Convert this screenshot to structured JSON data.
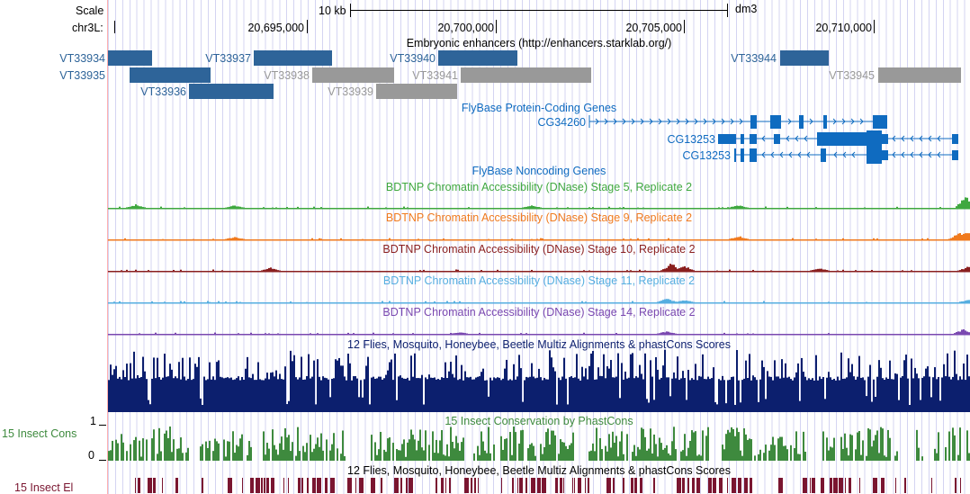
{
  "colors": {
    "enhancer": "#2e6499",
    "enhancer_alt": "#999999",
    "gene": "#0f6bc0",
    "stage5": "#3fa83f",
    "stage9": "#f07a1e",
    "stage10": "#8a1f1f",
    "stage11": "#55aee0",
    "stage14": "#7a48b0",
    "multiz": "#0c1f6e",
    "phastcons": "#3e8a3e",
    "elements": "#7a1530"
  },
  "ruler": {
    "scale_label": "Scale",
    "scale_bar_label": "10 kb",
    "assembly": "dm3",
    "chrom_label": "chr3L:",
    "positions": [
      "20,695,000",
      "20,700,000",
      "20,705,000",
      "20,710,000"
    ]
  },
  "tracks": {
    "enhancers": {
      "title": "Embryonic enhancers (http://enhancers.starklab.org/)",
      "features": [
        {
          "name": "VT33934",
          "shade": "enhancer"
        },
        {
          "name": "VT33935",
          "shade": "enhancer"
        },
        {
          "name": "VT33936",
          "shade": "enhancer"
        },
        {
          "name": "VT33937",
          "shade": "enhancer"
        },
        {
          "name": "VT33938",
          "shade": "enhancer_alt"
        },
        {
          "name": "VT33939",
          "shade": "enhancer_alt"
        },
        {
          "name": "VT33940",
          "shade": "enhancer"
        },
        {
          "name": "VT33941",
          "shade": "enhancer_alt"
        },
        {
          "name": "VT33944",
          "shade": "enhancer"
        },
        {
          "name": "VT33945",
          "shade": "enhancer_alt"
        }
      ]
    },
    "genes": {
      "title": "FlyBase Protein-Coding Genes",
      "items": [
        {
          "name": "CG34260",
          "strand": "+"
        },
        {
          "name": "CG13253",
          "strand": "-"
        },
        {
          "name": "CG13253",
          "strand": "-"
        }
      ]
    },
    "noncoding": {
      "title": "FlyBase Noncoding Genes"
    },
    "dnase": [
      {
        "title": "BDTNP Chromatin Accessibility (DNase) Stage 5, Replicate 2",
        "color": "stage5"
      },
      {
        "title": "BDTNP Chromatin Accessibility (DNase) Stage 9, Replicate 2",
        "color": "stage9"
      },
      {
        "title": "BDTNP Chromatin Accessibility (DNase) Stage 10, Replicate 2",
        "color": "stage10"
      },
      {
        "title": "BDTNP Chromatin Accessibility (DNase) Stage 11, Replicate 2",
        "color": "stage11"
      },
      {
        "title": "BDTNP Chromatin Accessibility (DNase) Stage 14, Replicate 2",
        "color": "stage14"
      }
    ],
    "multiz": {
      "title": "12 Flies, Mosquito, Honeybee, Beetle Multiz Alignments & phastCons Scores"
    },
    "phastcons": {
      "title": "15 Insect Conservation by PhastCons",
      "side_label": "15 Insect Cons",
      "axis_max": "1",
      "axis_min": "0"
    },
    "elements": {
      "title": "12 Flies, Mosquito, Honeybee, Beetle Multiz Alignments & phastCons Scores",
      "side_label": "15 Insect El"
    }
  }
}
